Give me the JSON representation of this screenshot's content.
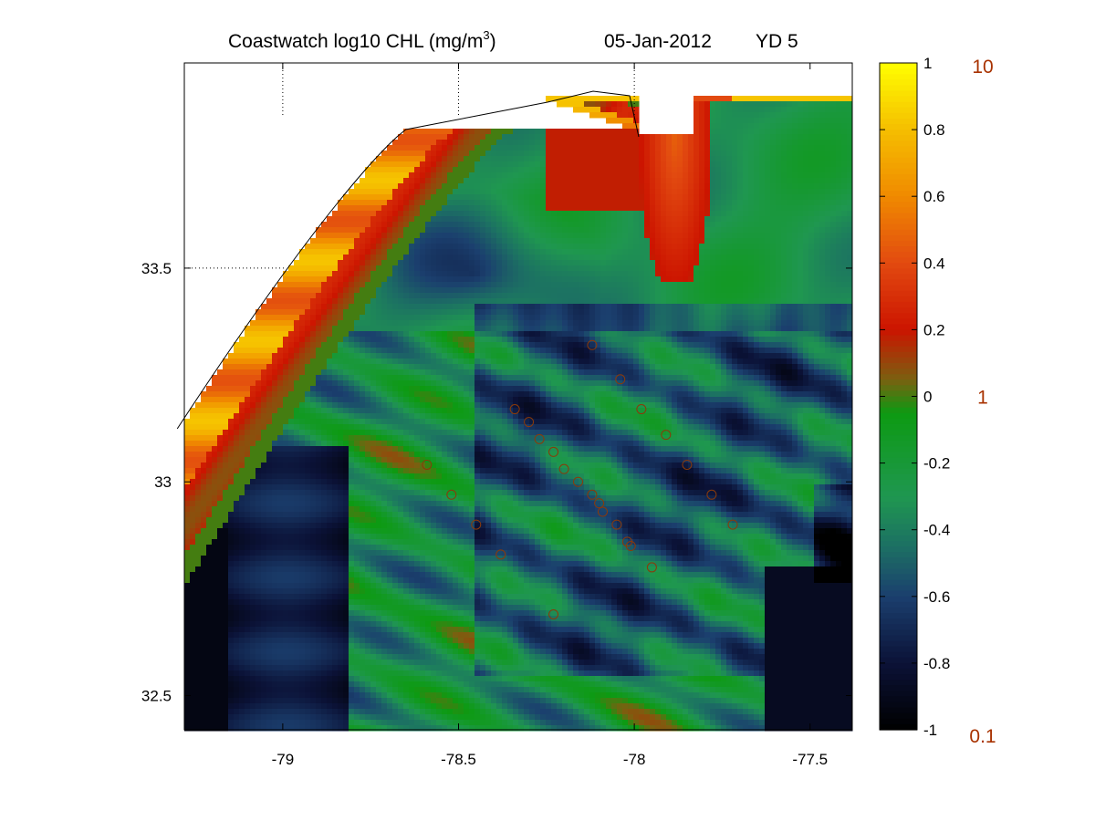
{
  "chart_data": {
    "type": "heatmap",
    "title": {
      "main": "Coastwatch log10 CHL (mg/m",
      "superscript": "3",
      "close": ")",
      "date": "05-Jan-2012",
      "yearday": "YD 5"
    },
    "variable": "log10 CHL (mg/m3)",
    "x_axis": {
      "range": [
        -79.28,
        -77.38
      ],
      "ticks": [
        -79,
        -78.5,
        -78,
        -77.5
      ],
      "tick_labels": [
        "-79",
        "-78.5",
        "-78",
        "-77.5"
      ]
    },
    "y_axis": {
      "range": [
        32.42,
        33.98
      ],
      "ticks": [
        32.5,
        33,
        33.5
      ],
      "tick_labels": [
        "32.5",
        "33",
        "33.5"
      ]
    },
    "grid": "dotted at x=-79, -78.5, -78 and y=33.5 over land",
    "colorbar": {
      "range": [
        -1,
        1
      ],
      "ticks": [
        -1,
        -0.8,
        -0.6,
        -0.4,
        -0.2,
        0,
        0.2,
        0.4,
        0.6,
        0.8,
        1
      ],
      "tick_labels": [
        "-1",
        "-0.8",
        "-0.6",
        "-0.4",
        "-0.2",
        "0",
        "0.2",
        "0.4",
        "0.6",
        "0.8",
        "1"
      ],
      "linear_labels": [
        {
          "value": 1,
          "label": "10"
        },
        {
          "value": 0,
          "label": "1"
        },
        {
          "value": -1,
          "label": "0.1"
        }
      ],
      "colors": [
        {
          "v": -1.0,
          "c": "#000000"
        },
        {
          "v": -0.8,
          "c": "#0b1237"
        },
        {
          "v": -0.6,
          "c": "#1b3f6e"
        },
        {
          "v": -0.45,
          "c": "#1c7063"
        },
        {
          "v": -0.3,
          "c": "#1f9750"
        },
        {
          "v": -0.05,
          "c": "#0d9a12"
        },
        {
          "v": 0.05,
          "c": "#7a6010"
        },
        {
          "v": 0.2,
          "c": "#cc1400"
        },
        {
          "v": 0.4,
          "c": "#e24a10"
        },
        {
          "v": 0.6,
          "c": "#f08a00"
        },
        {
          "v": 0.8,
          "c": "#f5be00"
        },
        {
          "v": 1.0,
          "c": "#ffff00"
        }
      ]
    },
    "stations": [
      {
        "lon": -78.59,
        "lat": 33.04
      },
      {
        "lon": -78.52,
        "lat": 32.97
      },
      {
        "lon": -78.45,
        "lat": 32.9
      },
      {
        "lon": -78.38,
        "lat": 32.83
      },
      {
        "lon": -78.34,
        "lat": 33.17
      },
      {
        "lon": -78.3,
        "lat": 33.14
      },
      {
        "lon": -78.27,
        "lat": 33.1
      },
      {
        "lon": -78.23,
        "lat": 33.07
      },
      {
        "lon": -78.2,
        "lat": 33.03
      },
      {
        "lon": -78.16,
        "lat": 33.0
      },
      {
        "lon": -78.12,
        "lat": 32.97
      },
      {
        "lon": -78.1,
        "lat": 32.95
      },
      {
        "lon": -78.09,
        "lat": 32.93
      },
      {
        "lon": -78.05,
        "lat": 32.9
      },
      {
        "lon": -78.02,
        "lat": 32.86
      },
      {
        "lon": -78.01,
        "lat": 32.85
      },
      {
        "lon": -77.95,
        "lat": 32.8
      },
      {
        "lon": -78.23,
        "lat": 32.69
      },
      {
        "lon": -78.12,
        "lat": 33.32
      },
      {
        "lon": -78.04,
        "lat": 33.24
      },
      {
        "lon": -77.98,
        "lat": 33.17
      },
      {
        "lon": -77.91,
        "lat": 33.11
      },
      {
        "lon": -77.85,
        "lat": 33.04
      },
      {
        "lon": -77.78,
        "lat": 32.97
      },
      {
        "lon": -77.72,
        "lat": 32.9
      }
    ],
    "marker_color": "#8a3a0a"
  }
}
